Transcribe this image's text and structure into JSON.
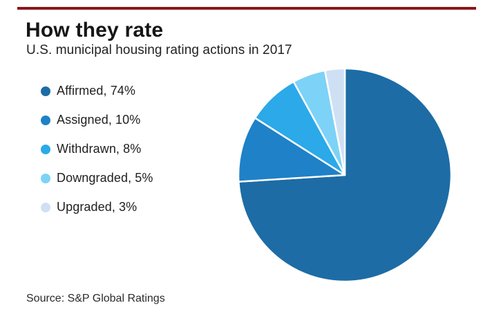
{
  "page": {
    "top_rule_color": "#8a1619",
    "background_color": "#ffffff"
  },
  "header": {
    "title": "How they rate",
    "subtitle": "U.S. municipal housing rating actions in 2017"
  },
  "chart_data": {
    "type": "pie",
    "title": "How they rate",
    "subtitle": "U.S. municipal housing rating actions in 2017",
    "categories": [
      "Affirmed",
      "Assigned",
      "Withdrawn",
      "Downgraded",
      "Upgraded"
    ],
    "values": [
      74,
      10,
      8,
      5,
      3
    ],
    "unit": "%",
    "colors": [
      "#1d6ca5",
      "#1f81c7",
      "#2ba9e8",
      "#7dd2f7",
      "#cfe0f5"
    ],
    "legend_labels": [
      "Affirmed, 74%",
      "Assigned, 10%",
      "Withdrawn, 8%",
      "Downgraded, 5%",
      "Upgraded, 3%"
    ],
    "legend_position": "left",
    "start_angle_deg": 0,
    "direction": "clockwise",
    "slice_separator_color": "#ffffff"
  },
  "footer": {
    "source": "Source: S&P Global Ratings"
  }
}
